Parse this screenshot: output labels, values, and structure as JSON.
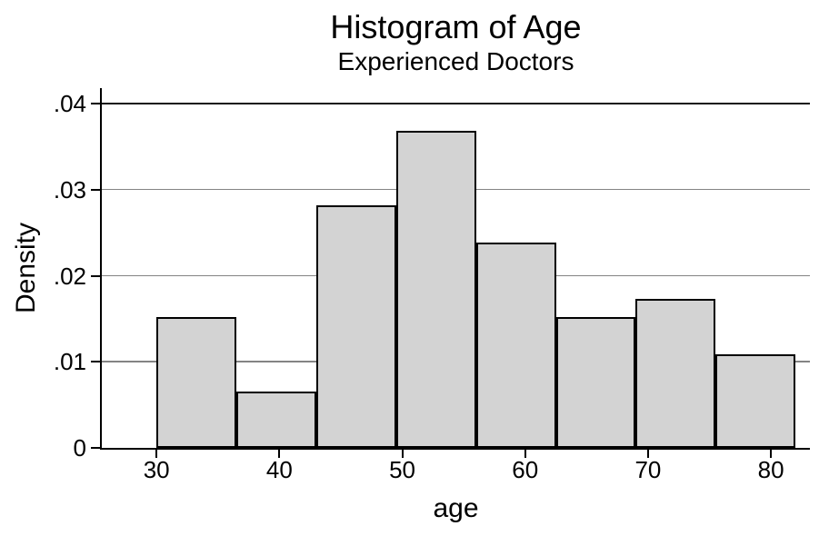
{
  "chart_data": {
    "type": "bar",
    "subtype": "histogram",
    "title": "Histogram of Age",
    "subtitle": "Experienced Doctors",
    "xlabel": "age",
    "ylabel": "Density",
    "bin_width": 6.5,
    "bin_edges": [
      30,
      36.5,
      43,
      49.5,
      56,
      62.5,
      69,
      75.5,
      82
    ],
    "values": [
      0.01517,
      0.0065,
      0.02817,
      0.03684,
      0.02384,
      0.01517,
      0.01734,
      0.01083
    ],
    "x_ticks": [
      30,
      40,
      50,
      60,
      70,
      80
    ],
    "y_ticks": [
      {
        "v": 0,
        "label": "0"
      },
      {
        "v": 0.01,
        "label": ".01"
      },
      {
        "v": 0.02,
        "label": ".02"
      },
      {
        "v": 0.03,
        "label": ".03"
      },
      {
        "v": 0.04,
        "label": ".04"
      }
    ],
    "xlim": [
      25.55,
      83.17
    ],
    "ylim": [
      0,
      0.0418
    ],
    "grid": true,
    "legend_position": "none",
    "colors": {
      "background": "#ffffff",
      "bar_fill": "#d3d3d3",
      "bar_border": "#000000",
      "gridline": "#848484",
      "gridline_top": "#131313",
      "axis": "#000000",
      "text": "#000000"
    }
  }
}
